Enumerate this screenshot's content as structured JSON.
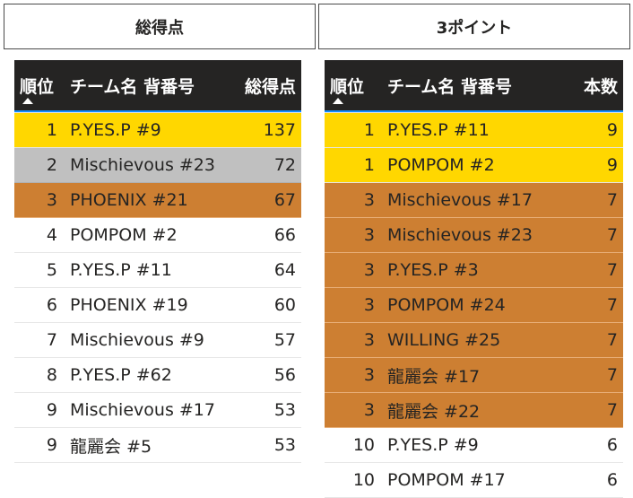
{
  "left_panel": {
    "title": "総得点",
    "columns": {
      "rank": "順位",
      "team": "チーム名 背番号",
      "value": "総得点"
    },
    "rows": [
      {
        "rank": "1",
        "team": "P.YES.P #9",
        "value": "137",
        "medal": "gold"
      },
      {
        "rank": "2",
        "team": "Mischievous #23",
        "value": "72",
        "medal": "silver"
      },
      {
        "rank": "3",
        "team": "PHOENIX #21",
        "value": "67",
        "medal": "bronze"
      },
      {
        "rank": "4",
        "team": "POMPOM #2",
        "value": "66",
        "medal": ""
      },
      {
        "rank": "5",
        "team": "P.YES.P #11",
        "value": "64",
        "medal": ""
      },
      {
        "rank": "6",
        "team": "PHOENIX #19",
        "value": "60",
        "medal": ""
      },
      {
        "rank": "7",
        "team": "Mischievous #9",
        "value": "57",
        "medal": ""
      },
      {
        "rank": "8",
        "team": "P.YES.P #62",
        "value": "56",
        "medal": ""
      },
      {
        "rank": "9",
        "team": "Mischievous #17",
        "value": "53",
        "medal": ""
      },
      {
        "rank": "9",
        "team": "龍麗会 #5",
        "value": "53",
        "medal": ""
      }
    ]
  },
  "right_panel": {
    "title": "3ポイント",
    "columns": {
      "rank": "順位",
      "team": "チーム名 背番号",
      "value": "本数"
    },
    "rows": [
      {
        "rank": "1",
        "team": "P.YES.P #11",
        "value": "9",
        "medal": "gold"
      },
      {
        "rank": "1",
        "team": "POMPOM #2",
        "value": "9",
        "medal": "gold"
      },
      {
        "rank": "3",
        "team": "Mischievous #17",
        "value": "7",
        "medal": "bronze"
      },
      {
        "rank": "3",
        "team": "Mischievous #23",
        "value": "7",
        "medal": "bronze"
      },
      {
        "rank": "3",
        "team": "P.YES.P #3",
        "value": "7",
        "medal": "bronze"
      },
      {
        "rank": "3",
        "team": "POMPOM #24",
        "value": "7",
        "medal": "bronze"
      },
      {
        "rank": "3",
        "team": "WILLING #25",
        "value": "7",
        "medal": "bronze"
      },
      {
        "rank": "3",
        "team": "龍麗会 #17",
        "value": "7",
        "medal": "bronze"
      },
      {
        "rank": "3",
        "team": "龍麗会 #22",
        "value": "7",
        "medal": "bronze"
      },
      {
        "rank": "10",
        "team": "P.YES.P #9",
        "value": "6",
        "medal": ""
      },
      {
        "rank": "10",
        "team": "POMPOM #17",
        "value": "6",
        "medal": ""
      }
    ]
  },
  "colors": {
    "gold": "#ffd700",
    "silver": "#c0c0c0",
    "bronze": "#cd7f32",
    "header_bg": "#252423",
    "header_text": "#ffffff"
  },
  "icons": {
    "sort": "sort-ascending-icon"
  }
}
